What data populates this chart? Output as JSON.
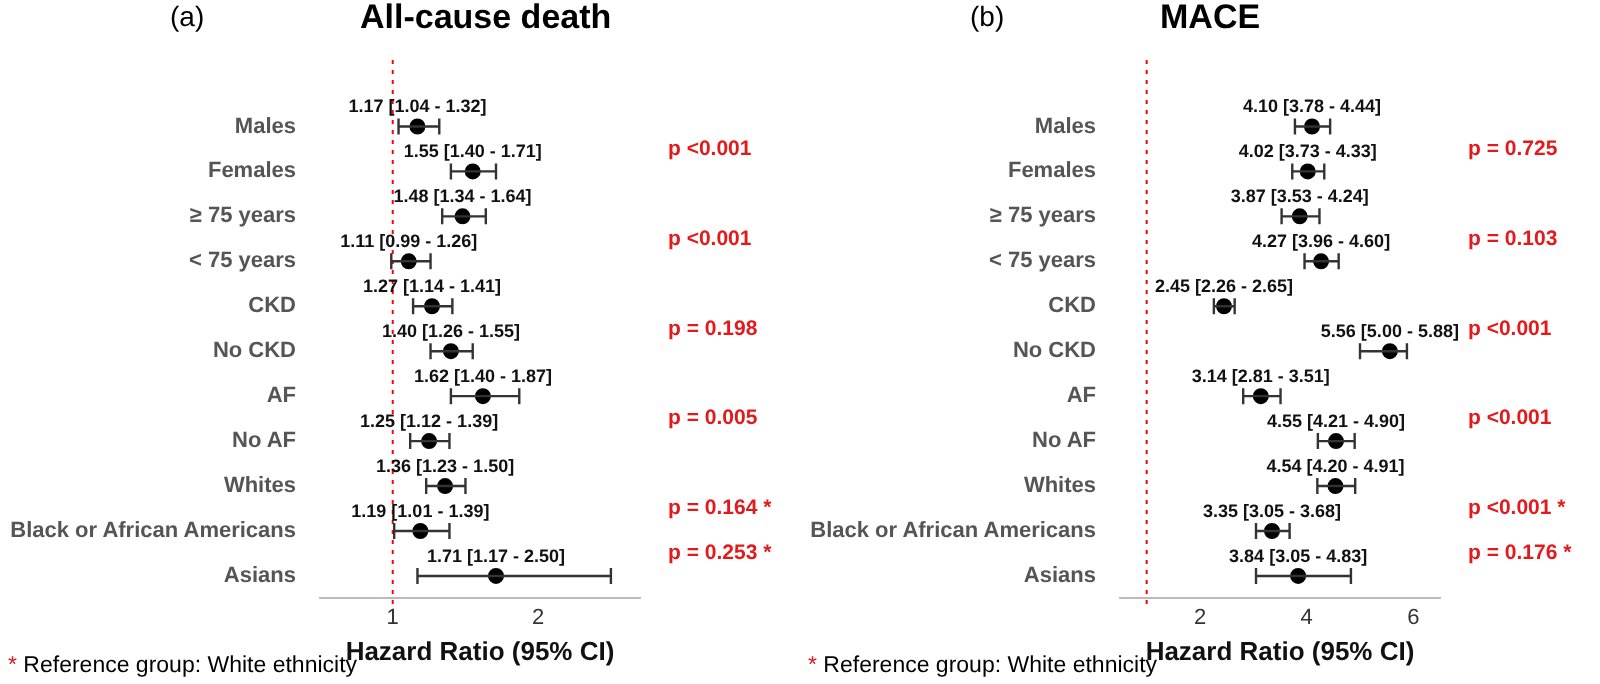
{
  "chart_data": [
    {
      "type": "scatter",
      "orientation": "horizontal",
      "title": "All-cause death",
      "subtitle": "(a)",
      "xlabel": "Hazard Ratio (95% CI)",
      "categories": [
        "Males",
        "Females",
        "≥ 75 years",
        "< 75 years",
        "CKD",
        "No CKD",
        "AF",
        "No AF",
        "Whites",
        "Black or African Americans",
        "Asians"
      ],
      "color": "#000000",
      "marker": "circle",
      "values": [
        1.17,
        1.55,
        1.48,
        1.11,
        1.27,
        1.4,
        1.62,
        1.25,
        1.36,
        1.19,
        1.71
      ],
      "errors": [
        [
          1.04,
          1.32
        ],
        [
          1.4,
          1.71
        ],
        [
          1.34,
          1.64
        ],
        [
          0.99,
          1.26
        ],
        [
          1.14,
          1.41
        ],
        [
          1.26,
          1.55
        ],
        [
          1.4,
          1.87
        ],
        [
          1.12,
          1.39
        ],
        [
          1.23,
          1.5
        ],
        [
          1.01,
          1.39
        ],
        [
          1.17,
          2.5
        ]
      ],
      "value_labels": [
        "1.17 [1.04 - 1.32]",
        "1.55 [1.40 - 1.71]",
        "1.48 [1.34 - 1.64]",
        "1.11 [0.99 - 1.26]",
        "1.27 [1.14 - 1.41]",
        "1.40 [1.26 - 1.55]",
        "1.62 [1.40 - 1.87]",
        "1.25 [1.12 - 1.39]",
        "1.36 [1.23 - 1.50]",
        "1.19 [1.01 - 1.39]",
        "1.71 [1.17 - 2.50]"
      ],
      "xlim": [
        0.5,
        2.7
      ],
      "xticks": [
        1,
        2
      ],
      "grid": false,
      "ref_lines": [
        {
          "axis": "x",
          "value": 1,
          "color": "#ff0000",
          "line_style": "dotted"
        }
      ],
      "annotations": [
        "p <0.001",
        "p <0.001",
        "p = 0.198",
        "p = 0.005",
        "p = 0.164 *",
        "p = 0.253 *",
        "* Reference group: White ethnicity"
      ]
    },
    {
      "type": "scatter",
      "orientation": "horizontal",
      "title": "MACE",
      "subtitle": "(b)",
      "xlabel": "Hazard Ratio (95% CI)",
      "categories": [
        "Males",
        "Females",
        "≥ 75 years",
        "< 75 years",
        "CKD",
        "No CKD",
        "AF",
        "No AF",
        "Whites",
        "Black or African Americans",
        "Asians"
      ],
      "color": "#000000",
      "marker": "circle",
      "values": [
        4.1,
        4.02,
        3.87,
        4.27,
        2.45,
        5.56,
        3.14,
        4.55,
        4.54,
        3.35,
        3.84
      ],
      "errors": [
        [
          3.78,
          4.44
        ],
        [
          3.73,
          4.33
        ],
        [
          3.53,
          4.24
        ],
        [
          3.96,
          4.6
        ],
        [
          2.26,
          2.65
        ],
        [
          5.0,
          5.88
        ],
        [
          2.81,
          3.51
        ],
        [
          4.21,
          4.9
        ],
        [
          4.2,
          4.91
        ],
        [
          3.05,
          3.68
        ],
        [
          3.05,
          4.83
        ]
      ],
      "value_labels": [
        "4.10 [3.78 - 4.44]",
        "4.02 [3.73 - 4.33]",
        "3.87 [3.53 - 4.24]",
        "4.27 [3.96 - 4.60]",
        "2.45 [2.26 - 2.65]",
        "5.56 [5.00 - 5.88]",
        "3.14 [2.81 - 3.51]",
        "4.55 [4.21 - 4.90]",
        "4.54 [4.20 - 4.91]",
        "3.35 [3.05 - 3.68]",
        "3.84 [3.05 - 4.83]"
      ],
      "xlim": [
        0.5,
        6.5
      ],
      "xticks": [
        2,
        4,
        6
      ],
      "grid": false,
      "ref_lines": [
        {
          "axis": "x",
          "value": 1,
          "color": "#ff0000",
          "line_style": "dotted"
        }
      ],
      "annotations": [
        "p = 0.725",
        "p = 0.103",
        "p <0.001",
        "p <0.001",
        "p <0.001 *",
        "p = 0.176 *",
        "* Reference group: White ethnicity"
      ]
    }
  ]
}
